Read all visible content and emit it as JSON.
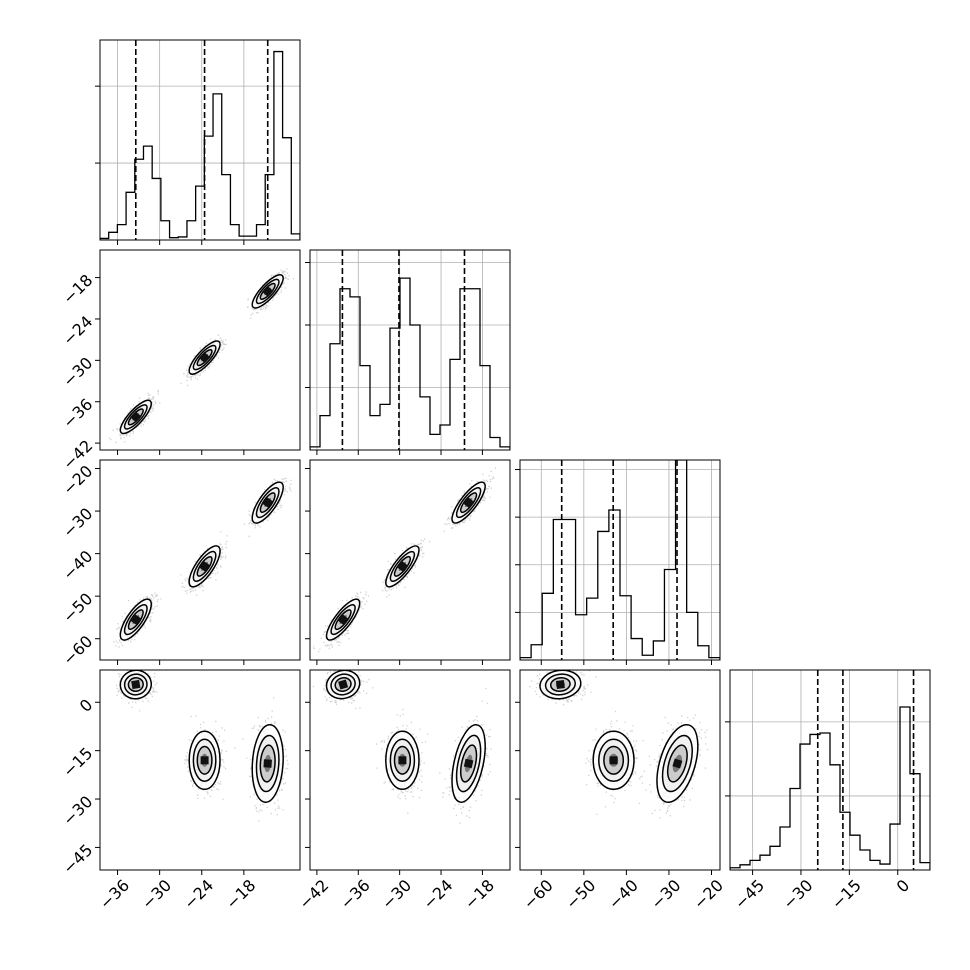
{
  "chart_data": {
    "type": "corner",
    "title": "",
    "grid": true,
    "parameters": [
      {
        "range": [
          -38.5,
          -10.0
        ],
        "ticks": [
          -36,
          -30,
          -24,
          -18
        ],
        "tick_labels": [
          "−36",
          "−30",
          "−24",
          "−18"
        ],
        "quantiles": [
          -33.4,
          -23.6,
          -14.6
        ],
        "hist_max": 26,
        "hist_yticks": [
          10,
          20
        ],
        "hist": [
          0.2,
          1.0,
          2.0,
          6.2,
          10.5,
          12.2,
          8.0,
          2.5,
          0.3,
          0.4,
          2.5,
          7.0,
          13.5,
          19.0,
          8.5,
          2.0,
          0.5,
          0.5,
          2.0,
          8.5,
          24.5,
          13.3,
          0.8
        ]
      },
      {
        "range": [
          -43.0,
          -14.0
        ],
        "ticks": [
          -42,
          -36,
          -30,
          -24,
          -18
        ],
        "tick_labels": [
          "−42",
          "−36",
          "−30",
          "−24",
          "−18"
        ],
        "quantiles": [
          -38.3,
          -30.1,
          -20.6
        ],
        "hist_max": 32,
        "hist_yticks": [
          10,
          20,
          30
        ],
        "hist": [
          0.5,
          5.5,
          17.0,
          25.8,
          24.5,
          13.5,
          5.5,
          7.3,
          19.5,
          27.5,
          20.0,
          8.5,
          2.5,
          4.0,
          14.5,
          25.8,
          25.8,
          13.5,
          2.0,
          0.5
        ]
      },
      {
        "range": [
          -65.0,
          -18.0
        ],
        "ticks": [
          -60,
          -50,
          -40,
          -30,
          -20
        ],
        "tick_labels": [
          "−60",
          "−50",
          "−40",
          "−30",
          "−20"
        ],
        "quantiles": [
          -55.2,
          -43.1,
          -28.1
        ],
        "hist_max": 42,
        "hist_yticks": [
          10,
          20,
          30,
          40
        ],
        "hist": [
          0.5,
          3.2,
          14.0,
          29.5,
          29.5,
          9.5,
          13.0,
          27.0,
          31.5,
          13.5,
          4.5,
          1.0,
          4.0,
          19.0,
          42.0,
          10.0,
          3.0,
          0.5
        ]
      },
      {
        "range": [
          -52.0,
          10.0
        ],
        "ticks": [
          -45,
          -30,
          -15,
          0
        ],
        "tick_labels": [
          "−45",
          "−30",
          "−15",
          "0"
        ],
        "quantiles": [
          -24.8,
          -17.0,
          4.9
        ],
        "hist_max": 27,
        "hist_yticks": [
          10,
          20
        ],
        "hist": [
          0.3,
          0.7,
          1.3,
          2.0,
          3.2,
          5.8,
          11.0,
          17.0,
          18.3,
          18.5,
          14.2,
          7.8,
          4.7,
          2.7,
          1.3,
          0.8,
          6.2,
          22.0,
          13.0,
          1.0
        ]
      }
    ],
    "clusters": [
      [
        -33.4,
        -38.2,
        -55.5,
        5.5
      ],
      [
        -23.6,
        -29.6,
        -43.0,
        -18.0
      ],
      [
        -14.6,
        -20.0,
        -28.0,
        -19.0
      ]
    ]
  }
}
